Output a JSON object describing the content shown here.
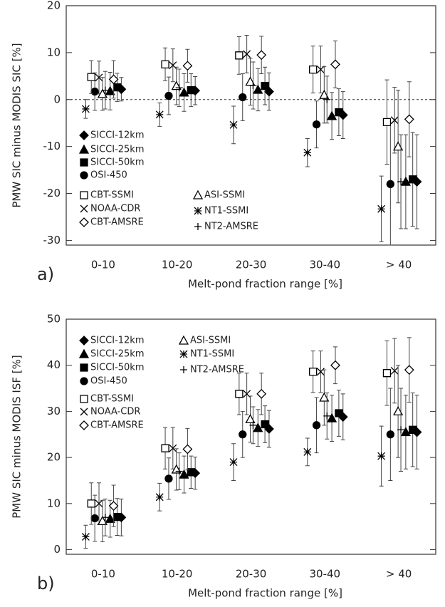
{
  "chart_data": [
    {
      "type": "errorbar",
      "panel_label": "a)",
      "ylabel": "PMW SIC minus MODIS SIC [%]",
      "xlabel": "Melt-pond fraction range [%]",
      "categories": [
        "0-10",
        "10-20",
        "20-30",
        "30-40",
        "> 40"
      ],
      "ylim": [
        -31,
        20
      ],
      "yticks": [
        -30,
        -20,
        -10,
        0,
        10,
        20
      ],
      "zero_line": true,
      "series": [
        {
          "name": "SICCI-12km",
          "marker": "diamond-filled",
          "color": "#000",
          "values": [
            2.2,
            1.9,
            1.7,
            -3.3,
            -17.5
          ],
          "errors": [
            2.5,
            3,
            4,
            5,
            10
          ]
        },
        {
          "name": "SICCI-25km",
          "marker": "triangle-filled",
          "color": "#000",
          "values": [
            1.8,
            1.5,
            2.1,
            -3.5,
            -17.5
          ],
          "errors": [
            4,
            4,
            4.5,
            5,
            10
          ]
        },
        {
          "name": "SICCI-50km",
          "marker": "square-filled",
          "color": "#000",
          "values": [
            2.6,
            2.0,
            2.9,
            -2.7,
            -17
          ],
          "errors": [
            3,
            3.5,
            4,
            5,
            10
          ]
        },
        {
          "name": "OSI-450",
          "marker": "circle-filled",
          "color": "#000",
          "values": [
            1.7,
            0.8,
            0.5,
            -5.3,
            -18
          ],
          "errors": [
            4,
            4,
            5,
            5,
            13
          ]
        },
        {
          "name": "CBT-SSMI",
          "marker": "square-open",
          "color": "#000",
          "values": [
            4.8,
            7.5,
            9.4,
            6.4,
            -4.8
          ],
          "errors": [
            3.5,
            3.5,
            4,
            5,
            9
          ]
        },
        {
          "name": "NOAA-CDR",
          "marker": "x",
          "color": "#000",
          "values": [
            4.7,
            7.3,
            9.7,
            6.4,
            -4.4
          ],
          "errors": [
            3.5,
            3.5,
            4,
            5,
            7
          ]
        },
        {
          "name": "CBT-AMSRE",
          "marker": "diamond-open",
          "color": "#000",
          "values": [
            4.3,
            7.2,
            9.5,
            7.5,
            -4.2
          ],
          "errors": [
            4,
            3.5,
            4,
            5,
            8
          ]
        },
        {
          "name": "ASI-SSMI",
          "marker": "triangle-open",
          "color": "#000",
          "values": [
            1.2,
            2.9,
            3.8,
            1.0,
            -10
          ],
          "errors": [
            3.5,
            4,
            5,
            6,
            12
          ]
        },
        {
          "name": "NT1-SSMI",
          "marker": "asterisk",
          "color": "#000",
          "values": [
            -2.0,
            -3.2,
            -5.4,
            -11.3,
            -23.3
          ],
          "errors": [
            2,
            2.5,
            4,
            3,
            7
          ]
        },
        {
          "name": "NT2-AMSRE",
          "marker": "plus",
          "color": "#000",
          "values": [
            2,
            2.5,
            3,
            0,
            -17.5
          ],
          "errors": [
            4,
            4,
            5,
            5,
            10
          ]
        }
      ]
    },
    {
      "type": "errorbar",
      "panel_label": "b)",
      "ylabel": "PMW SIC minus MODIS ISF [%]",
      "xlabel": "Melt-pond fraction range [%]",
      "categories": [
        "0-10",
        "10-20",
        "20-30",
        "30-40",
        "> 40"
      ],
      "ylim": [
        -1,
        50
      ],
      "yticks": [
        0,
        10,
        20,
        30,
        40,
        50
      ],
      "zero_line": false,
      "series": [
        {
          "name": "SICCI-12km",
          "marker": "diamond-filled",
          "color": "#000",
          "values": [
            7,
            16.6,
            26.2,
            28.8,
            25.5
          ],
          "errors": [
            4,
            3.5,
            4,
            5,
            8
          ]
        },
        {
          "name": "SICCI-25km",
          "marker": "triangle-filled",
          "color": "#000",
          "values": [
            6.7,
            16.3,
            26.4,
            28.5,
            25.5
          ],
          "errors": [
            4,
            4,
            4,
            5,
            8
          ]
        },
        {
          "name": "SICCI-50km",
          "marker": "square-filled",
          "color": "#000",
          "values": [
            7.1,
            16.8,
            27.2,
            29.6,
            26
          ],
          "errors": [
            4,
            3.5,
            4,
            5,
            8
          ]
        },
        {
          "name": "OSI-450",
          "marker": "circle-filled",
          "color": "#000",
          "values": [
            6.8,
            15.4,
            25,
            27,
            25
          ],
          "errors": [
            5,
            4.5,
            5,
            6,
            10
          ]
        },
        {
          "name": "CBT-SSMI",
          "marker": "square-open",
          "color": "#000",
          "values": [
            10,
            22,
            33.8,
            38.6,
            38.3
          ],
          "errors": [
            4.5,
            4.5,
            4.5,
            4.5,
            7
          ]
        },
        {
          "name": "NOAA-CDR",
          "marker": "x",
          "color": "#000",
          "values": [
            10,
            22,
            33.8,
            38.6,
            38.8
          ],
          "errors": [
            4.5,
            4.5,
            4.5,
            4.5,
            7
          ]
        },
        {
          "name": "CBT-AMSRE",
          "marker": "diamond-open",
          "color": "#000",
          "values": [
            9.5,
            21.8,
            33.8,
            40,
            39
          ],
          "errors": [
            4.5,
            4.5,
            4.5,
            4,
            7
          ]
        },
        {
          "name": "ASI-SSMI",
          "marker": "triangle-open",
          "color": "#000",
          "values": [
            6.2,
            17.4,
            28.3,
            33,
            30
          ],
          "errors": [
            4.5,
            4.5,
            5,
            6,
            10
          ]
        },
        {
          "name": "NT1-SSMI",
          "marker": "asterisk",
          "color": "#000",
          "values": [
            2.8,
            11.4,
            19,
            21.2,
            20.3
          ],
          "errors": [
            2.5,
            3,
            4,
            3,
            6.5
          ]
        },
        {
          "name": "NT2-AMSRE",
          "marker": "plus",
          "color": "#000",
          "values": [
            7,
            17,
            27,
            29,
            26
          ],
          "errors": [
            4,
            4,
            4,
            5,
            9
          ]
        }
      ]
    }
  ]
}
